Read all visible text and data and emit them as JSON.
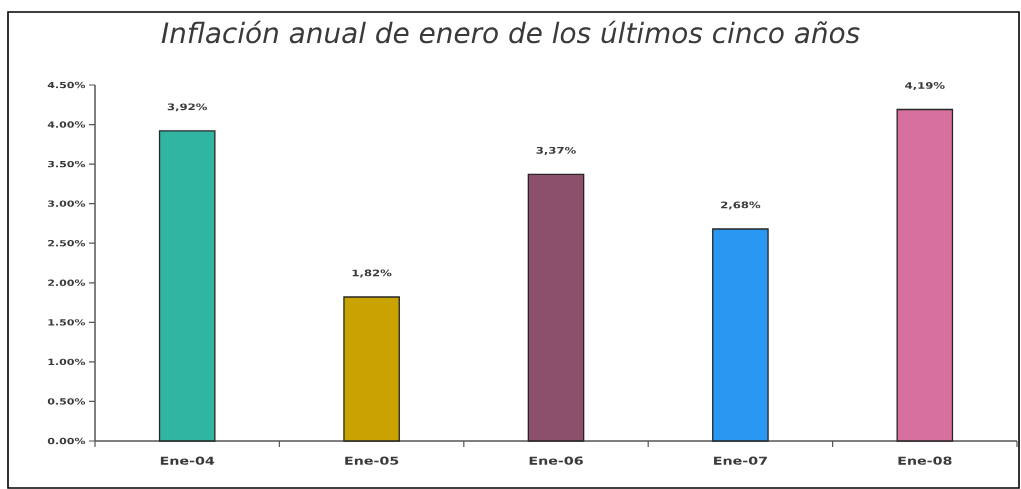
{
  "chart_data": {
    "type": "bar",
    "title": "Inflación anual de enero de los últimos cinco años",
    "categories": [
      "Ene-04",
      "Ene-05",
      "Ene-06",
      "Ene-07",
      "Ene-08"
    ],
    "values": [
      3.92,
      1.82,
      3.37,
      2.68,
      4.19
    ],
    "colors": [
      "#2fb5a2",
      "#c9a400",
      "#8c4f6c",
      "#2a98f2",
      "#d8709f"
    ],
    "value_labels": [
      "3,92%",
      "1,82%",
      "3,37%",
      "2,68%",
      "4,19%"
    ],
    "ylim": [
      0,
      4.5
    ],
    "yticks": [
      {
        "value": 0,
        "label": "0.00%"
      },
      {
        "value": 0.5,
        "label": "0.50%"
      },
      {
        "value": 1,
        "label": "1.00%"
      },
      {
        "value": 1.5,
        "label": "1.50%"
      },
      {
        "value": 2,
        "label": "2.00%"
      },
      {
        "value": 2.5,
        "label": "2.50%"
      },
      {
        "value": 3,
        "label": "3.00%"
      },
      {
        "value": 3.5,
        "label": "3.50%"
      },
      {
        "value": 4,
        "label": "4.00%"
      },
      {
        "value": 4.5,
        "label": "4.50%"
      }
    ]
  }
}
